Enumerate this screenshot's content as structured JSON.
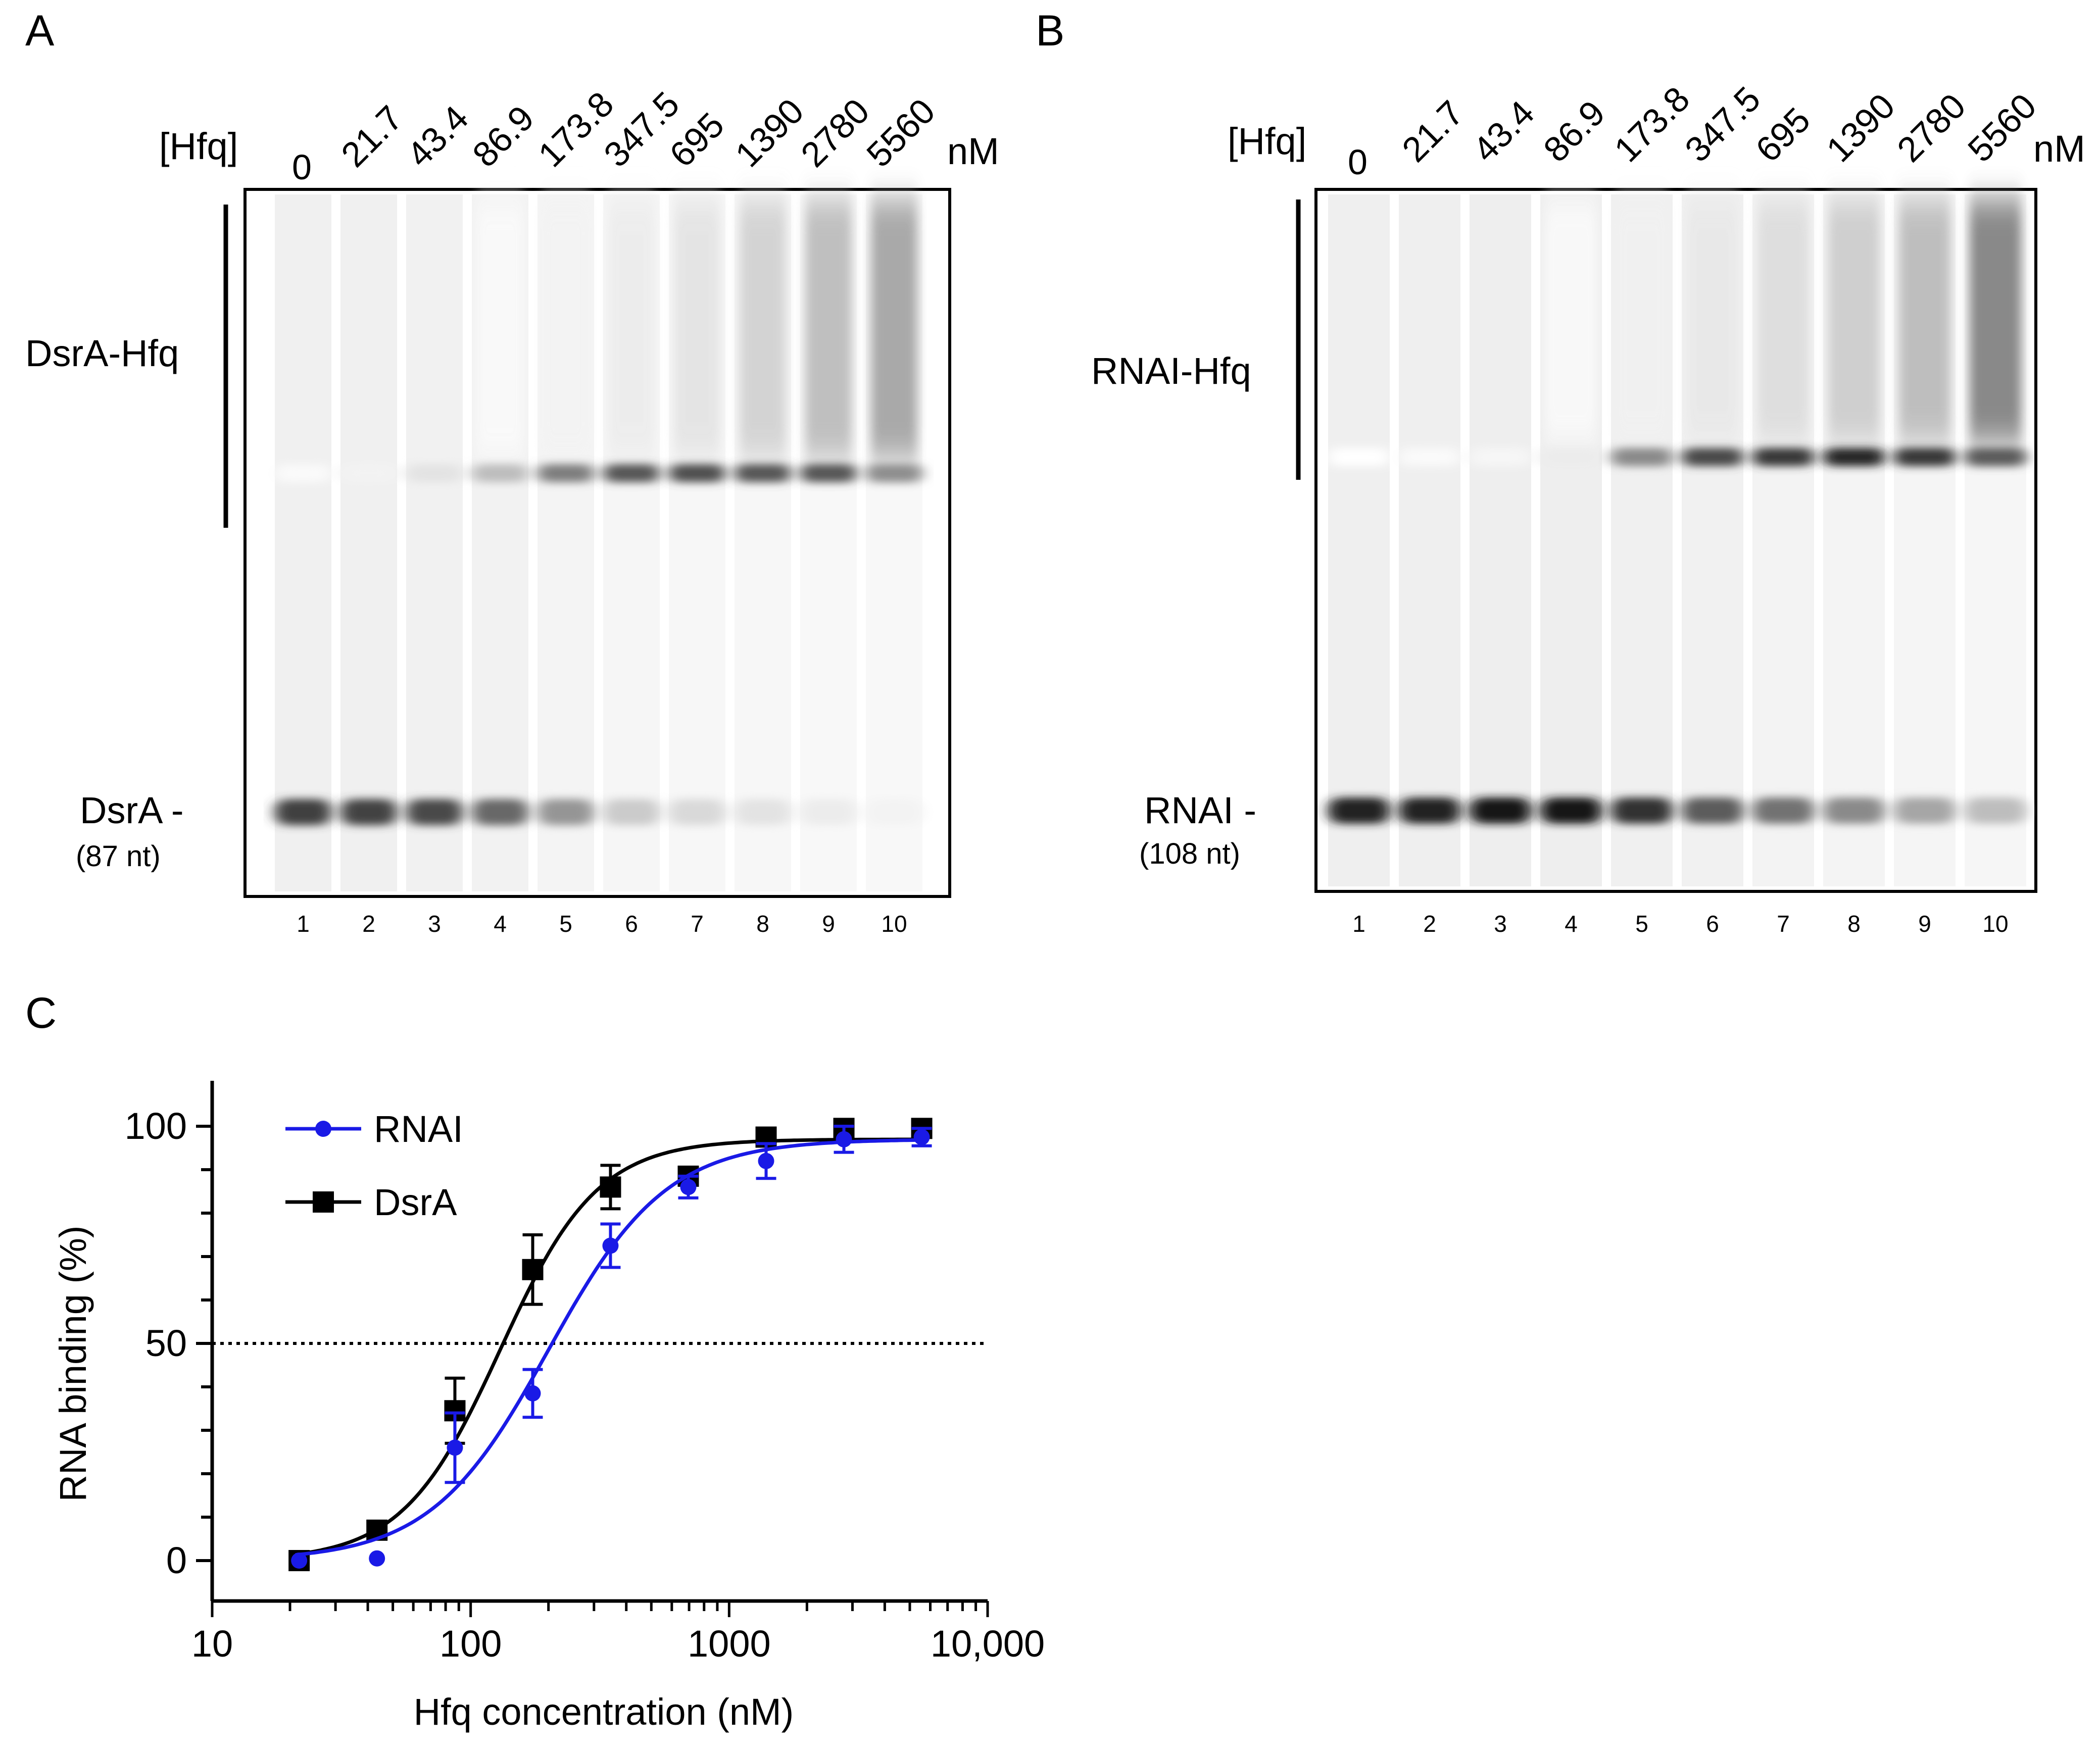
{
  "panel_labels": {
    "a": "A",
    "b": "B",
    "c": "C"
  },
  "gel_a": {
    "hfq_label": "[Hfq]",
    "unit": "nM",
    "concentrations": [
      "0",
      "21.7",
      "43.4",
      "86.9",
      "173.8",
      "347.5",
      "695",
      "1390",
      "2780",
      "5560"
    ],
    "lanes": [
      "1",
      "2",
      "3",
      "4",
      "5",
      "6",
      "7",
      "8",
      "9",
      "10"
    ],
    "complex_label": "DsrA-Hfq",
    "free_label": "DsrA -",
    "free_size": "(87 nt)",
    "complex_band_intensity": [
      0.02,
      0.05,
      0.12,
      0.28,
      0.55,
      0.72,
      0.75,
      0.72,
      0.72,
      0.48
    ],
    "free_band_intensity": [
      0.82,
      0.8,
      0.78,
      0.65,
      0.45,
      0.22,
      0.16,
      0.12,
      0.08,
      0.05
    ],
    "upper_smear_intensity": [
      0.0,
      0.0,
      0.0,
      0.02,
      0.05,
      0.08,
      0.12,
      0.2,
      0.3,
      0.4
    ]
  },
  "gel_b": {
    "hfq_label": "[Hfq]",
    "unit": "nM",
    "concentrations": [
      "0",
      "21.7",
      "43.4",
      "86.9",
      "173.8",
      "347.5",
      "695",
      "1390",
      "2780",
      "5560"
    ],
    "lanes": [
      "1",
      "2",
      "3",
      "4",
      "5",
      "6",
      "7",
      "8",
      "9",
      "10"
    ],
    "complex_label": "RNAI-Hfq",
    "free_label": "RNAI -",
    "free_size": "(108 nt)",
    "complex_band_intensity": [
      0.0,
      0.02,
      0.04,
      0.08,
      0.5,
      0.78,
      0.85,
      0.92,
      0.85,
      0.7
    ],
    "free_band_intensity": [
      0.95,
      0.95,
      1.0,
      1.0,
      0.88,
      0.7,
      0.6,
      0.5,
      0.38,
      0.28
    ],
    "upper_smear_intensity": [
      0.0,
      0.0,
      0.0,
      0.02,
      0.06,
      0.1,
      0.15,
      0.22,
      0.3,
      0.55
    ]
  },
  "chart_data": {
    "type": "scatter",
    "xlabel": "Hfq concentration (nM)",
    "ylabel": "RNA binding (%)",
    "xscale": "log",
    "xlim": [
      10,
      10000
    ],
    "ylim": [
      0,
      100
    ],
    "x_ticks": [
      "10",
      "100",
      "1000",
      "10,000"
    ],
    "y_ticks": [
      "0",
      "50",
      "100"
    ],
    "reference_line_y": 50,
    "legend_position": "top-left",
    "series": [
      {
        "name": "RNAI",
        "marker": "circle",
        "color": "#1a1ae6",
        "x": [
          21.7,
          43.4,
          86.9,
          173.8,
          347.5,
          695,
          1390,
          2780,
          5560
        ],
        "y": [
          0,
          0.5,
          26,
          38.5,
          72.5,
          86,
          92,
          97,
          97.5
        ],
        "err": [
          0,
          0,
          8,
          5.5,
          5,
          2.5,
          4,
          3,
          2
        ],
        "fit": {
          "kd": 200,
          "hill": 1.9,
          "max": 97
        }
      },
      {
        "name": "DsrA",
        "marker": "square",
        "color": "#000000",
        "x": [
          21.7,
          43.4,
          86.9,
          173.8,
          347.5,
          695,
          1390,
          2780,
          5560
        ],
        "y": [
          0,
          7,
          34.5,
          67,
          86,
          88.5,
          97.5,
          99.5,
          99.5
        ],
        "err": [
          0,
          2,
          7.5,
          8,
          5,
          2,
          1,
          1,
          1
        ],
        "fit": {
          "kd": 130,
          "hill": 2.3,
          "max": 97
        }
      }
    ]
  }
}
